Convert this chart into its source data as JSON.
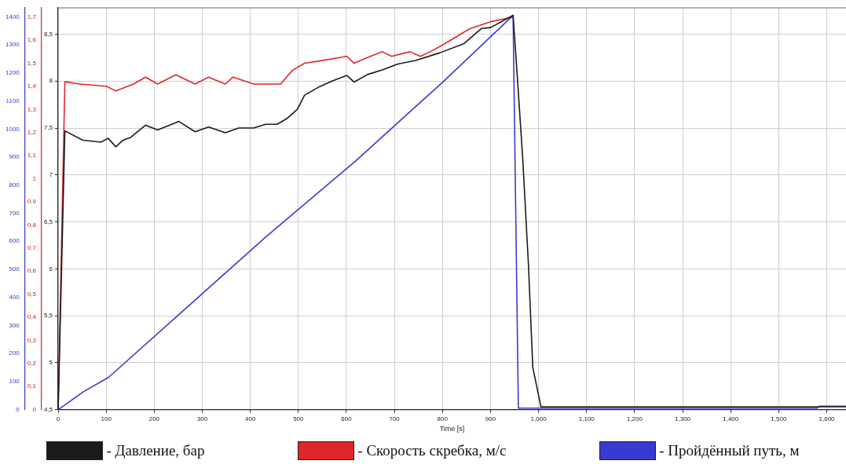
{
  "chart_data": {
    "type": "line",
    "xlabel": "Time [s]",
    "xlim": [
      0,
      1640
    ],
    "xticks": [
      0,
      100,
      200,
      300,
      400,
      500,
      600,
      700,
      800,
      900,
      {
        "value": 1000,
        "label": "1,000"
      },
      {
        "value": 1100,
        "label": "1,100"
      },
      {
        "value": 1200,
        "label": "1,200"
      },
      {
        "value": 1300,
        "label": "1,300"
      },
      {
        "value": 1400,
        "label": "1,400"
      },
      {
        "value": 1500,
        "label": "1,500"
      },
      {
        "value": 1600,
        "label": "1,600"
      }
    ],
    "ylim": [
      4.5,
      8.78
    ],
    "yticks": [
      {
        "value": 4.5,
        "label": "4,5"
      },
      5,
      {
        "value": 5.5,
        "label": "5,5"
      },
      6,
      {
        "value": 6.5,
        "label": "6,5"
      },
      7,
      {
        "value": 7.5,
        "label": "7,5"
      },
      8,
      {
        "value": 8.5,
        "label": "8,5"
      }
    ],
    "y2lim": [
      0,
      1.74
    ],
    "y2ticks": [
      0,
      {
        "value": 0.1,
        "label": "0,1"
      },
      {
        "value": 0.2,
        "label": "0,2"
      },
      {
        "value": 0.3,
        "label": "0,3"
      },
      {
        "value": 0.4,
        "label": "0,4"
      },
      {
        "value": 0.5,
        "label": "0,5"
      },
      {
        "value": 0.6,
        "label": "0,6"
      },
      {
        "value": 0.7,
        "label": "0,7"
      },
      {
        "value": 0.8,
        "label": "0,8"
      },
      {
        "value": 0.9,
        "label": "0,9"
      },
      1,
      {
        "value": 1.1,
        "label": "1,1"
      },
      {
        "value": 1.2,
        "label": "1,2"
      },
      {
        "value": 1.3,
        "label": "1,3"
      },
      {
        "value": 1.4,
        "label": "1,4"
      },
      {
        "value": 1.5,
        "label": "1,5"
      },
      {
        "value": 1.6,
        "label": "1,6"
      },
      {
        "value": 1.7,
        "label": "1,7"
      }
    ],
    "y3lim": [
      0,
      1432
    ],
    "y3ticks": [
      0,
      100,
      200,
      300,
      400,
      500,
      600,
      700,
      800,
      900,
      1000,
      1100,
      1200,
      1300,
      1400
    ],
    "grid": true,
    "legend": "bottom",
    "marker": "none",
    "line_style": "solid",
    "series": [
      {
        "name": "- Давление, бар",
        "color": "#1a1a1a",
        "axis": "y",
        "x": [
          0,
          14,
          51,
          89,
          104,
          120,
          135,
          151,
          182,
          207,
          251,
          285,
          313,
          348,
          376,
          407,
          432,
          456,
          476,
          498,
          513,
          544,
          570,
          601,
          616,
          644,
          675,
          706,
          744,
          794,
          845,
          881,
          900,
          947,
          956,
          967,
          979,
          988,
          1005,
          1640
        ],
        "values": [
          4.5,
          7.47,
          7.37,
          7.35,
          7.39,
          7.3,
          7.37,
          7.4,
          7.53,
          7.48,
          7.57,
          7.46,
          7.51,
          7.45,
          7.5,
          7.5,
          7.54,
          7.54,
          7.6,
          7.7,
          7.85,
          7.94,
          8.0,
          8.06,
          7.99,
          8.07,
          8.12,
          8.18,
          8.22,
          8.3,
          8.4,
          8.56,
          8.57,
          8.7,
          8.03,
          7.18,
          6.04,
          4.95,
          4.53,
          4.53
        ]
      },
      {
        "name": "- Скорость скребка, м/с",
        "color": "#e0262a",
        "axis": "y2",
        "x": [
          0,
          14,
          45,
          101,
          120,
          157,
          182,
          207,
          245,
          285,
          313,
          348,
          364,
          407,
          463,
          488,
          513,
          544,
          601,
          616,
          650,
          675,
          694,
          732,
          754,
          775,
          801,
          857,
          900,
          947
        ],
        "values": [
          0,
          1.42,
          1.41,
          1.4,
          1.38,
          1.41,
          1.44,
          1.41,
          1.45,
          1.41,
          1.44,
          1.41,
          1.44,
          1.41,
          1.41,
          1.47,
          1.5,
          1.51,
          1.53,
          1.5,
          1.53,
          1.55,
          1.53,
          1.55,
          1.53,
          1.55,
          1.58,
          1.65,
          1.68,
          1.7
        ]
      },
      {
        "name": "- Пройдённый путь, м",
        "color": "#3a3ad0",
        "axis": "y3",
        "x": [
          0,
          12,
          52,
          105,
          432,
          619,
          801,
          947,
          958,
          1580,
          1585,
          1640
        ],
        "values": [
          0,
          14,
          63,
          115,
          615,
          886,
          1168,
          1405,
          5,
          5,
          12,
          12
        ]
      }
    ]
  }
}
